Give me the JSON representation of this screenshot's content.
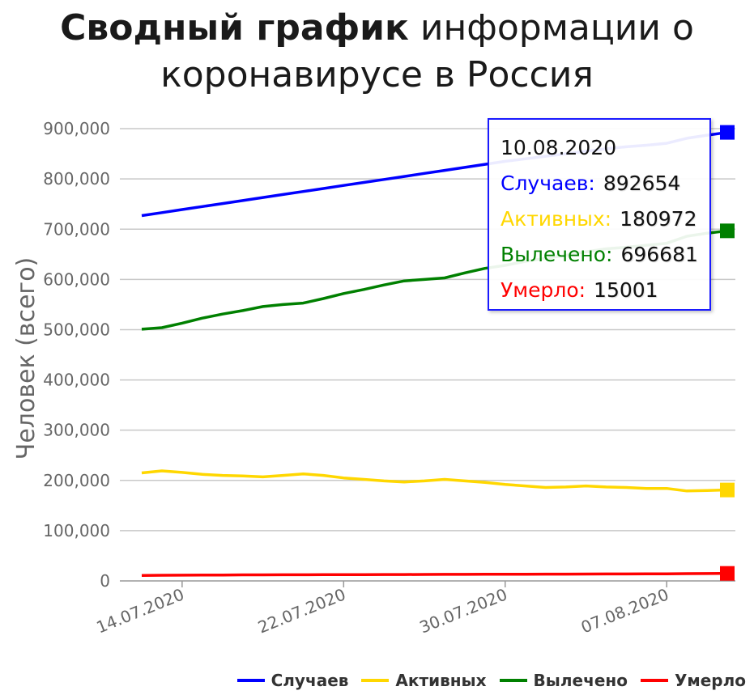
{
  "chart_data": {
    "type": "line",
    "title": {
      "bold": "Сводный график",
      "line1_rest": "информации о",
      "line2": "коронавирусе в Россия"
    },
    "ylabel": "Человек (всего)",
    "ylim": [
      0,
      950000
    ],
    "y_ticks": [
      {
        "value": 0,
        "label": "0"
      },
      {
        "value": 100000,
        "label": "100,000"
      },
      {
        "value": 200000,
        "label": "200,000"
      },
      {
        "value": 300000,
        "label": "300,000"
      },
      {
        "value": 400000,
        "label": "400,000"
      },
      {
        "value": 500000,
        "label": "500,000"
      },
      {
        "value": 600000,
        "label": "600,000"
      },
      {
        "value": 700000,
        "label": "700,000"
      },
      {
        "value": 800000,
        "label": "800,000"
      },
      {
        "value": 900000,
        "label": "900,000"
      }
    ],
    "x": [
      "12.07.2020",
      "13.07.2020",
      "14.07.2020",
      "15.07.2020",
      "16.07.2020",
      "17.07.2020",
      "18.07.2020",
      "19.07.2020",
      "20.07.2020",
      "21.07.2020",
      "22.07.2020",
      "23.07.2020",
      "24.07.2020",
      "25.07.2020",
      "26.07.2020",
      "27.07.2020",
      "28.07.2020",
      "29.07.2020",
      "30.07.2020",
      "31.07.2020",
      "01.08.2020",
      "02.08.2020",
      "03.08.2020",
      "04.08.2020",
      "05.08.2020",
      "06.08.2020",
      "07.08.2020",
      "08.08.2020",
      "09.08.2020",
      "10.08.2020"
    ],
    "x_tick_labels": [
      "14.07.2020",
      "22.07.2020",
      "30.07.2020",
      "07.08.2020"
    ],
    "series": [
      {
        "name": "Случаев",
        "color": "#0000ff",
        "values": [
          727000,
          733000,
          739000,
          745000,
          751000,
          757000,
          763000,
          769000,
          775000,
          781000,
          787000,
          793000,
          799000,
          805000,
          811000,
          817000,
          823000,
          829000,
          835000,
          840000,
          845000,
          850000,
          855000,
          860000,
          864000,
          867000,
          871000,
          881000,
          887000,
          892654
        ]
      },
      {
        "name": "Активных",
        "color": "#ffd700",
        "values": [
          215000,
          219000,
          216000,
          212000,
          210000,
          209000,
          207000,
          210000,
          213000,
          210000,
          205000,
          202000,
          199000,
          197000,
          199000,
          202000,
          199000,
          196000,
          192000,
          189000,
          186000,
          187000,
          189000,
          187000,
          186000,
          184000,
          184000,
          179000,
          180000,
          180972
        ]
      },
      {
        "name": "Вылечено",
        "color": "#008000",
        "values": [
          501000,
          504000,
          513000,
          523000,
          531000,
          538000,
          546000,
          550000,
          553000,
          562000,
          572000,
          580000,
          589000,
          597000,
          600000,
          603000,
          613000,
          622000,
          628000,
          636000,
          642000,
          648000,
          655000,
          661000,
          664000,
          668000,
          672000,
          686000,
          692000,
          696681
        ]
      },
      {
        "name": "Умерло",
        "color": "#ff0000",
        "values": [
          11000,
          11200,
          11400,
          11600,
          11800,
          12000,
          12100,
          12200,
          12300,
          12400,
          12500,
          12600,
          12700,
          12800,
          12900,
          13000,
          13100,
          13200,
          13300,
          13400,
          13500,
          13600,
          13700,
          13800,
          13900,
          14000,
          14200,
          14500,
          14700,
          15001
        ]
      }
    ],
    "tooltip": {
      "date": "10.08.2020",
      "rows": [
        {
          "label": "Случаев:",
          "value": "892654",
          "color": "#0000ff"
        },
        {
          "label": "Активных:",
          "value": "180972",
          "color": "#ffd700"
        },
        {
          "label": "Вылечено:",
          "value": "696681",
          "color": "#008000"
        },
        {
          "label": "Умерло:",
          "value": "15001",
          "color": "#ff0000"
        }
      ]
    },
    "legend_position": "bottom-right",
    "grid": true
  }
}
